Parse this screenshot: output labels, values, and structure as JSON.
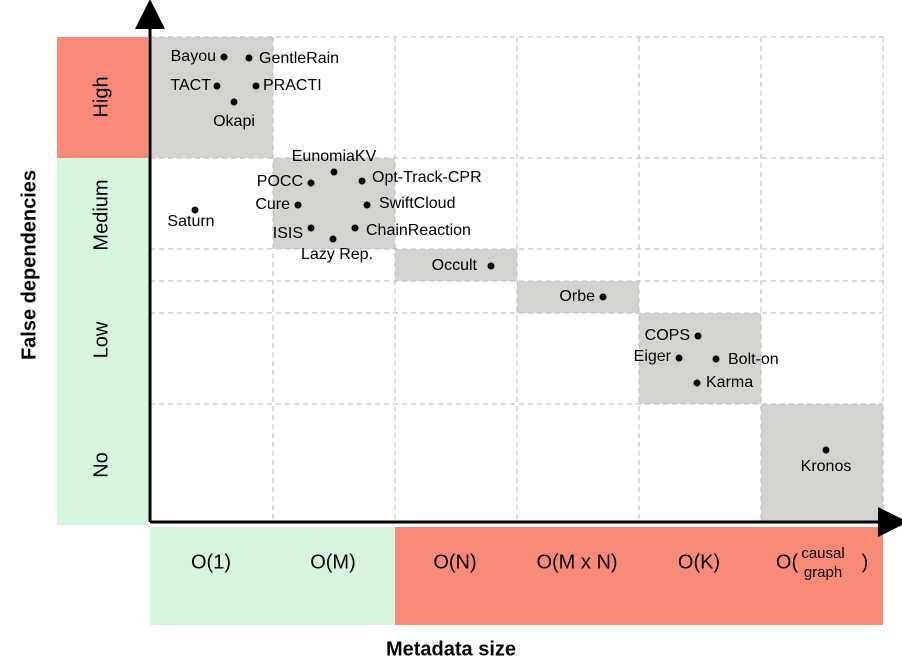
{
  "axis_titles": {
    "y": "False dependencies",
    "x": "Metadata size"
  },
  "y_levels": [
    "High",
    "Medium",
    "Low",
    "No"
  ],
  "x_levels": [
    "O(1)",
    "O(M)",
    "O(N)",
    "O(M x N)",
    "O(K)",
    {
      "prefix": "O(",
      "top": "causal",
      "bottom": "graph",
      "suffix": ")"
    }
  ],
  "systems": [
    "Bayou",
    "GentleRain",
    "TACT",
    "PRACTI",
    "Okapi",
    "EunomiaKV",
    "POCC",
    "Opt-Track-CPR",
    "Cure",
    "SwiftCloud",
    "Saturn",
    "ISIS",
    "ChainReaction",
    "Lazy Rep.",
    "Occult",
    "Orbe",
    "COPS",
    "Eiger",
    "Bolt-on",
    "Karma",
    "Kronos"
  ]
}
